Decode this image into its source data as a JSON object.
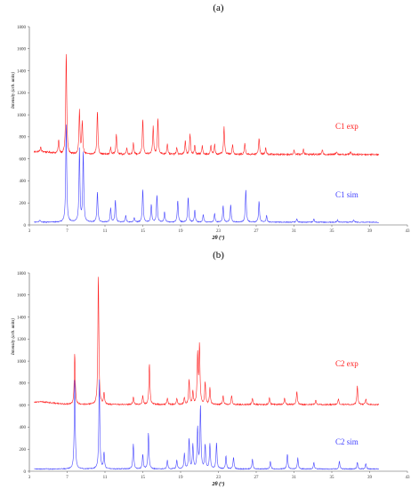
{
  "chart_data": [
    {
      "type": "line",
      "panel_label": "(a)",
      "xlabel": "2θ (°)",
      "ylabel": "Intensity (arb. units)",
      "xlim": [
        3,
        43
      ],
      "ylim": [
        0,
        1800
      ],
      "xticks": [
        "3",
        "7",
        "11",
        "15",
        "19",
        "23",
        "27",
        "31",
        "35",
        "39",
        "43"
      ],
      "yticks": [
        "0",
        "200",
        "400",
        "600",
        "800",
        "1000",
        "1200",
        "1400",
        "1600",
        "1800"
      ],
      "x_range": [
        3.5,
        40.0
      ],
      "series": [
        {
          "name": "C1 exp",
          "color": "#ff2222",
          "baseline": 640,
          "noise": 8,
          "peaks": [
            [
              4.2,
              40
            ],
            [
              6.1,
              120
            ],
            [
              6.9,
              930
            ],
            [
              8.3,
              400
            ],
            [
              8.6,
              300
            ],
            [
              10.2,
              400
            ],
            [
              11.6,
              60
            ],
            [
              12.2,
              190
            ],
            [
              13.3,
              60
            ],
            [
              14.0,
              100
            ],
            [
              15.0,
              320
            ],
            [
              16.1,
              250
            ],
            [
              16.6,
              330
            ],
            [
              17.6,
              100
            ],
            [
              18.6,
              60
            ],
            [
              19.5,
              120
            ],
            [
              20.0,
              180
            ],
            [
              20.5,
              80
            ],
            [
              21.3,
              80
            ],
            [
              22.2,
              80
            ],
            [
              22.6,
              90
            ],
            [
              23.6,
              250
            ],
            [
              24.5,
              90
            ],
            [
              25.8,
              100
            ],
            [
              27.3,
              150
            ],
            [
              28.0,
              60
            ],
            [
              31.0,
              40
            ],
            [
              32.0,
              50
            ],
            [
              34.0,
              40
            ],
            [
              35.5,
              30
            ],
            [
              37.0,
              25
            ]
          ]
        },
        {
          "name": "C1 sim",
          "color": "#4444ff",
          "baseline": 25,
          "noise": 4,
          "peaks": [
            [
              4.1,
              20
            ],
            [
              6.9,
              910
            ],
            [
              8.3,
              660
            ],
            [
              8.7,
              640
            ],
            [
              10.2,
              280
            ],
            [
              11.6,
              130
            ],
            [
              12.1,
              200
            ],
            [
              13.2,
              60
            ],
            [
              14.1,
              40
            ],
            [
              15.0,
              300
            ],
            [
              15.9,
              160
            ],
            [
              16.5,
              250
            ],
            [
              17.3,
              90
            ],
            [
              18.7,
              200
            ],
            [
              19.8,
              230
            ],
            [
              20.5,
              110
            ],
            [
              21.4,
              70
            ],
            [
              22.6,
              80
            ],
            [
              23.5,
              150
            ],
            [
              24.3,
              160
            ],
            [
              25.9,
              300
            ],
            [
              27.3,
              190
            ],
            [
              28.1,
              60
            ],
            [
              31.3,
              30
            ],
            [
              33.1,
              30
            ],
            [
              35.6,
              20
            ],
            [
              37.3,
              20
            ]
          ]
        }
      ]
    },
    {
      "type": "line",
      "panel_label": "(b)",
      "xlabel": "2θ (°)",
      "ylabel": "Intensity (arb. units)",
      "xlim": [
        3,
        43
      ],
      "ylim": [
        0,
        1800
      ],
      "xticks": [
        "3",
        "7",
        "11",
        "15",
        "19",
        "23",
        "27",
        "31",
        "35",
        "39",
        "43"
      ],
      "yticks": [
        "0",
        "200",
        "400",
        "600",
        "800",
        "1000",
        "1200",
        "1400",
        "1600",
        "1800"
      ],
      "x_range": [
        3.5,
        40.0
      ],
      "series": [
        {
          "name": "C2 exp",
          "color": "#ff2222",
          "baseline": 605,
          "noise": 6,
          "peaks": [
            [
              7.8,
              470
            ],
            [
              10.3,
              1190
            ],
            [
              10.9,
              110
            ],
            [
              14.0,
              70
            ],
            [
              15.0,
              80
            ],
            [
              15.7,
              380
            ],
            [
              17.6,
              60
            ],
            [
              18.6,
              60
            ],
            [
              19.4,
              60
            ],
            [
              19.9,
              230
            ],
            [
              20.3,
              120
            ],
            [
              20.8,
              450
            ],
            [
              21.0,
              530
            ],
            [
              21.6,
              200
            ],
            [
              22.1,
              150
            ],
            [
              23.5,
              80
            ],
            [
              24.4,
              80
            ],
            [
              26.6,
              60
            ],
            [
              28.4,
              60
            ],
            [
              30.0,
              60
            ],
            [
              31.3,
              120
            ],
            [
              33.3,
              40
            ],
            [
              35.7,
              50
            ],
            [
              37.7,
              170
            ],
            [
              38.6,
              50
            ]
          ]
        },
        {
          "name": "C2 sim",
          "color": "#4444ff",
          "baseline": 20,
          "noise": 4,
          "peaks": [
            [
              7.8,
              830
            ],
            [
              10.4,
              810
            ],
            [
              10.9,
              150
            ],
            [
              14.0,
              230
            ],
            [
              15.0,
              130
            ],
            [
              15.6,
              330
            ],
            [
              17.6,
              80
            ],
            [
              18.6,
              80
            ],
            [
              19.4,
              140
            ],
            [
              19.9,
              280
            ],
            [
              20.3,
              220
            ],
            [
              20.8,
              370
            ],
            [
              21.1,
              570
            ],
            [
              21.6,
              220
            ],
            [
              22.1,
              230
            ],
            [
              22.8,
              240
            ],
            [
              23.8,
              120
            ],
            [
              24.6,
              110
            ],
            [
              26.6,
              90
            ],
            [
              28.5,
              70
            ],
            [
              30.3,
              140
            ],
            [
              31.4,
              100
            ],
            [
              33.1,
              60
            ],
            [
              35.8,
              70
            ],
            [
              37.7,
              60
            ],
            [
              38.6,
              50
            ]
          ]
        }
      ]
    }
  ]
}
